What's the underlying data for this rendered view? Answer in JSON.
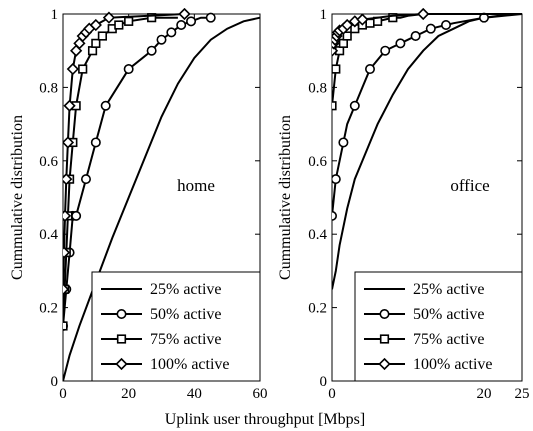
{
  "chart_data": [
    {
      "type": "line",
      "annotation": "home",
      "ylabel": "Cummulative distribution",
      "xlim": [
        0,
        60
      ],
      "ylim": [
        0,
        1
      ],
      "xticks": [
        "0",
        "20",
        "40",
        "60"
      ],
      "yticks": [
        "0",
        "0.2",
        "0.4",
        "0.6",
        "0.8",
        "1"
      ],
      "grid": false,
      "legend_position": "bottom-right",
      "series": [
        {
          "name": "25% active",
          "marker": "none",
          "x": [
            0,
            2,
            5,
            10,
            15,
            20,
            25,
            30,
            35,
            40,
            45,
            50,
            55,
            60
          ],
          "y": [
            0,
            0.07,
            0.15,
            0.27,
            0.39,
            0.5,
            0.61,
            0.72,
            0.81,
            0.88,
            0.93,
            0.96,
            0.98,
            0.99
          ]
        },
        {
          "name": "50% active",
          "marker": "circle",
          "x": [
            0,
            1,
            2,
            3,
            4,
            7,
            10,
            13,
            20,
            27,
            30,
            33,
            36,
            39,
            42,
            45
          ],
          "y": [
            0.15,
            0.25,
            0.35,
            0.45,
            0.45,
            0.55,
            0.65,
            0.75,
            0.85,
            0.9,
            0.93,
            0.95,
            0.97,
            0.98,
            0.99,
            0.99
          ],
          "marker_x": [
            0,
            1,
            2,
            3,
            4,
            7,
            10,
            13,
            20,
            27,
            30,
            33,
            36,
            39,
            45
          ],
          "marker_y": [
            0.15,
            0.25,
            0.35,
            0.45,
            0.45,
            0.55,
            0.65,
            0.75,
            0.85,
            0.9,
            0.93,
            0.95,
            0.97,
            0.98,
            0.99
          ]
        },
        {
          "name": "75% active",
          "marker": "square",
          "x": [
            0,
            0.5,
            1,
            1.5,
            2,
            3,
            4,
            6,
            9,
            10,
            12,
            15,
            17,
            20,
            27,
            35
          ],
          "y": [
            0.15,
            0.25,
            0.35,
            0.45,
            0.55,
            0.65,
            0.75,
            0.85,
            0.9,
            0.92,
            0.94,
            0.96,
            0.97,
            0.98,
            0.99,
            0.99
          ],
          "marker_x": [
            0,
            0.5,
            1,
            1.5,
            2,
            3,
            4,
            6,
            9,
            10,
            12,
            15,
            17,
            20,
            27
          ],
          "marker_y": [
            0.15,
            0.25,
            0.35,
            0.45,
            0.55,
            0.65,
            0.75,
            0.85,
            0.9,
            0.92,
            0.94,
            0.96,
            0.97,
            0.98,
            0.99
          ]
        },
        {
          "name": "100% active",
          "marker": "diamond",
          "x": [
            0,
            0.3,
            0.6,
            1,
            1.5,
            2,
            3,
            4,
            5,
            6,
            7,
            8,
            10,
            14,
            37
          ],
          "y": [
            0.25,
            0.35,
            0.45,
            0.55,
            0.65,
            0.75,
            0.85,
            0.9,
            0.92,
            0.94,
            0.95,
            0.96,
            0.97,
            0.99,
            1.0
          ],
          "marker_x": [
            0,
            0.3,
            0.6,
            1,
            1.5,
            2,
            3,
            4,
            5,
            6,
            7,
            8,
            10,
            14,
            37
          ],
          "marker_y": [
            0.25,
            0.35,
            0.45,
            0.55,
            0.65,
            0.75,
            0.85,
            0.9,
            0.92,
            0.94,
            0.95,
            0.96,
            0.97,
            0.99,
            1.0
          ]
        }
      ]
    },
    {
      "type": "line",
      "annotation": "office",
      "ylabel": "Cummulative distribution",
      "xlim": [
        0,
        25
      ],
      "ylim": [
        0,
        1
      ],
      "xticks": [
        "0",
        "20",
        "25"
      ],
      "yticks": [
        "0",
        "0.2",
        "0.4",
        "0.6",
        "0.8",
        "1"
      ],
      "grid": false,
      "legend_position": "bottom-right",
      "series": [
        {
          "name": "25% active",
          "marker": "none",
          "x": [
            0,
            0.5,
            1,
            2,
            3,
            4,
            5,
            6,
            8,
            10,
            12,
            14,
            16,
            18,
            20,
            22,
            24,
            25
          ],
          "y": [
            0.25,
            0.3,
            0.37,
            0.47,
            0.55,
            0.6,
            0.65,
            0.7,
            0.78,
            0.85,
            0.9,
            0.94,
            0.96,
            0.98,
            0.99,
            0.995,
            1.0,
            1.0
          ],
          "marker_x": [],
          "marker_y": []
        },
        {
          "name": "50% active",
          "marker": "circle",
          "x": [
            0,
            0.5,
            1,
            1.5,
            2,
            3,
            4,
            5,
            6,
            7,
            8,
            9,
            10,
            11,
            12,
            13,
            14,
            15,
            16,
            20,
            25
          ],
          "y": [
            0.45,
            0.55,
            0.6,
            0.65,
            0.7,
            0.75,
            0.8,
            0.85,
            0.875,
            0.9,
            0.91,
            0.92,
            0.93,
            0.94,
            0.95,
            0.96,
            0.965,
            0.97,
            0.975,
            0.99,
            1.0
          ],
          "marker_x": [
            0,
            0.5,
            1.5,
            3,
            5,
            7,
            9,
            11,
            13,
            15,
            20
          ],
          "marker_y": [
            0.45,
            0.55,
            0.65,
            0.75,
            0.85,
            0.9,
            0.92,
            0.94,
            0.96,
            0.97,
            0.99
          ]
        },
        {
          "name": "75% active",
          "marker": "square",
          "x": [
            0,
            0.5,
            1,
            1.5,
            2,
            3,
            4,
            5,
            6,
            7,
            8,
            9,
            10,
            12,
            25
          ],
          "y": [
            0.75,
            0.85,
            0.9,
            0.92,
            0.94,
            0.96,
            0.97,
            0.975,
            0.98,
            0.985,
            0.99,
            0.99,
            0.995,
            1.0,
            1.0
          ],
          "marker_x": [
            0,
            0.5,
            1,
            1.5,
            2,
            3,
            4,
            5,
            6,
            8
          ],
          "marker_y": [
            0.75,
            0.85,
            0.9,
            0.92,
            0.94,
            0.96,
            0.97,
            0.975,
            0.98,
            0.99
          ]
        },
        {
          "name": "100% active",
          "marker": "diamond",
          "x": [
            0,
            0.2,
            0.4,
            0.6,
            0.8,
            1,
            1.5,
            2,
            3,
            4,
            6,
            8,
            12,
            25
          ],
          "y": [
            0.9,
            0.92,
            0.93,
            0.94,
            0.95,
            0.955,
            0.96,
            0.97,
            0.98,
            0.985,
            0.99,
            0.995,
            1.0,
            1.0
          ],
          "marker_x": [
            0,
            0.2,
            0.4,
            0.6,
            0.8,
            1,
            1.5,
            2,
            3,
            4,
            12
          ],
          "marker_y": [
            0.9,
            0.92,
            0.93,
            0.94,
            0.95,
            0.955,
            0.96,
            0.97,
            0.98,
            0.985,
            1.0
          ]
        }
      ]
    }
  ],
  "shared_xlabel": "Uplink user throughput [Mbps]"
}
